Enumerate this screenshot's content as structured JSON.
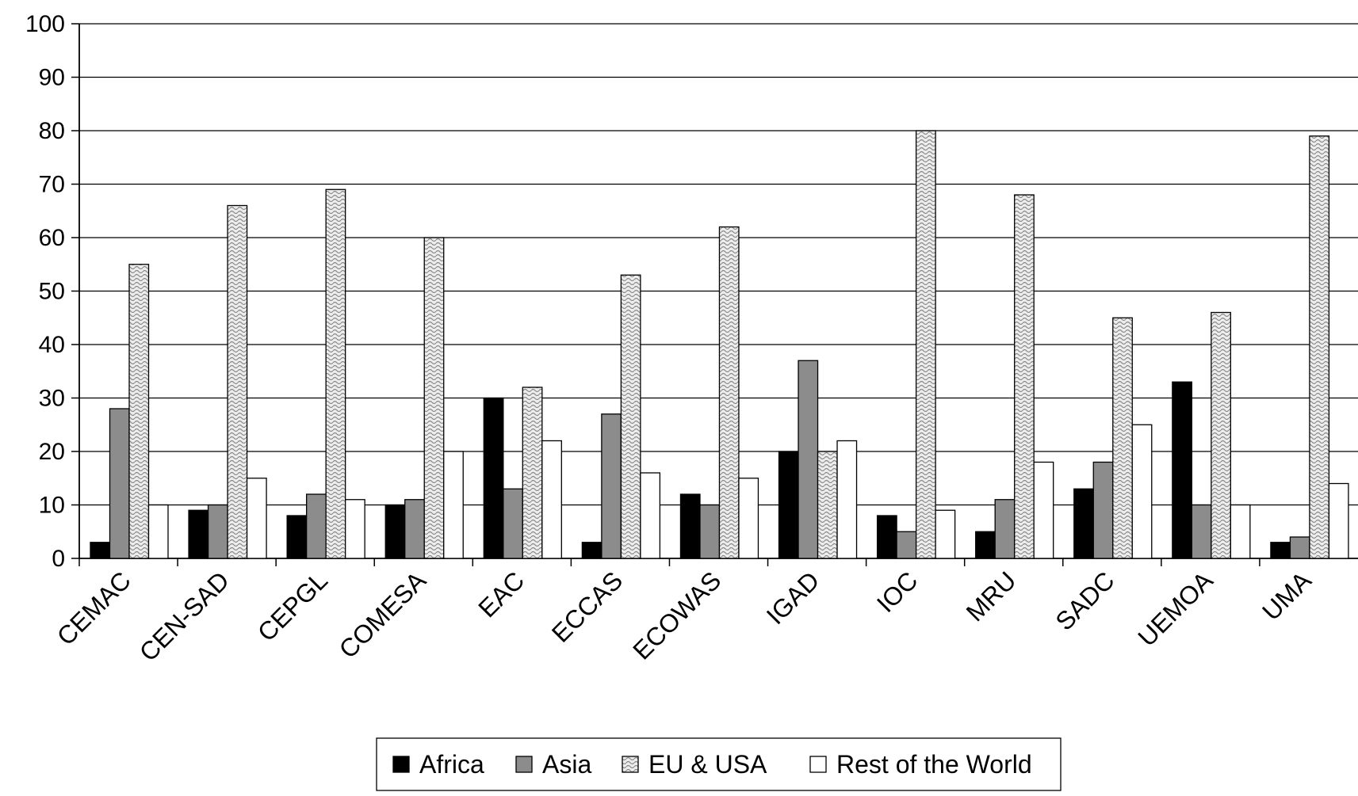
{
  "chart_data": {
    "type": "bar",
    "title": "",
    "xlabel": "",
    "ylabel": "",
    "ylim": [
      0,
      100
    ],
    "yticks": [
      0,
      10,
      20,
      30,
      40,
      50,
      60,
      70,
      80,
      90,
      100
    ],
    "grid": true,
    "legend_position": "bottom",
    "categories": [
      "CEMAC",
      "CEN-SAD",
      "CEPGL",
      "COMESA",
      "EAC",
      "ECCAS",
      "ECOWAS",
      "IGAD",
      "IOC",
      "MRU",
      "SADC",
      "UEMOA",
      "UMA"
    ],
    "series": [
      {
        "name": "Africa",
        "fill": "solid-black",
        "color": "#000000",
        "values": [
          3,
          9,
          8,
          10,
          30,
          3,
          12,
          20,
          8,
          5,
          13,
          33,
          3
        ]
      },
      {
        "name": "Asia",
        "fill": "solid-gray",
        "color": "#8c8c8c",
        "values": [
          28,
          10,
          12,
          11,
          13,
          27,
          10,
          37,
          5,
          11,
          18,
          10,
          4
        ]
      },
      {
        "name": "EU & USA",
        "fill": "wave-pattern",
        "color": "#c8c8c8",
        "values": [
          55,
          66,
          69,
          60,
          32,
          53,
          62,
          20,
          80,
          68,
          45,
          46,
          79
        ]
      },
      {
        "name": "Rest of the World",
        "fill": "white",
        "color": "#ffffff",
        "values": [
          10,
          15,
          11,
          20,
          22,
          16,
          15,
          22,
          9,
          18,
          25,
          10,
          14
        ]
      }
    ]
  }
}
